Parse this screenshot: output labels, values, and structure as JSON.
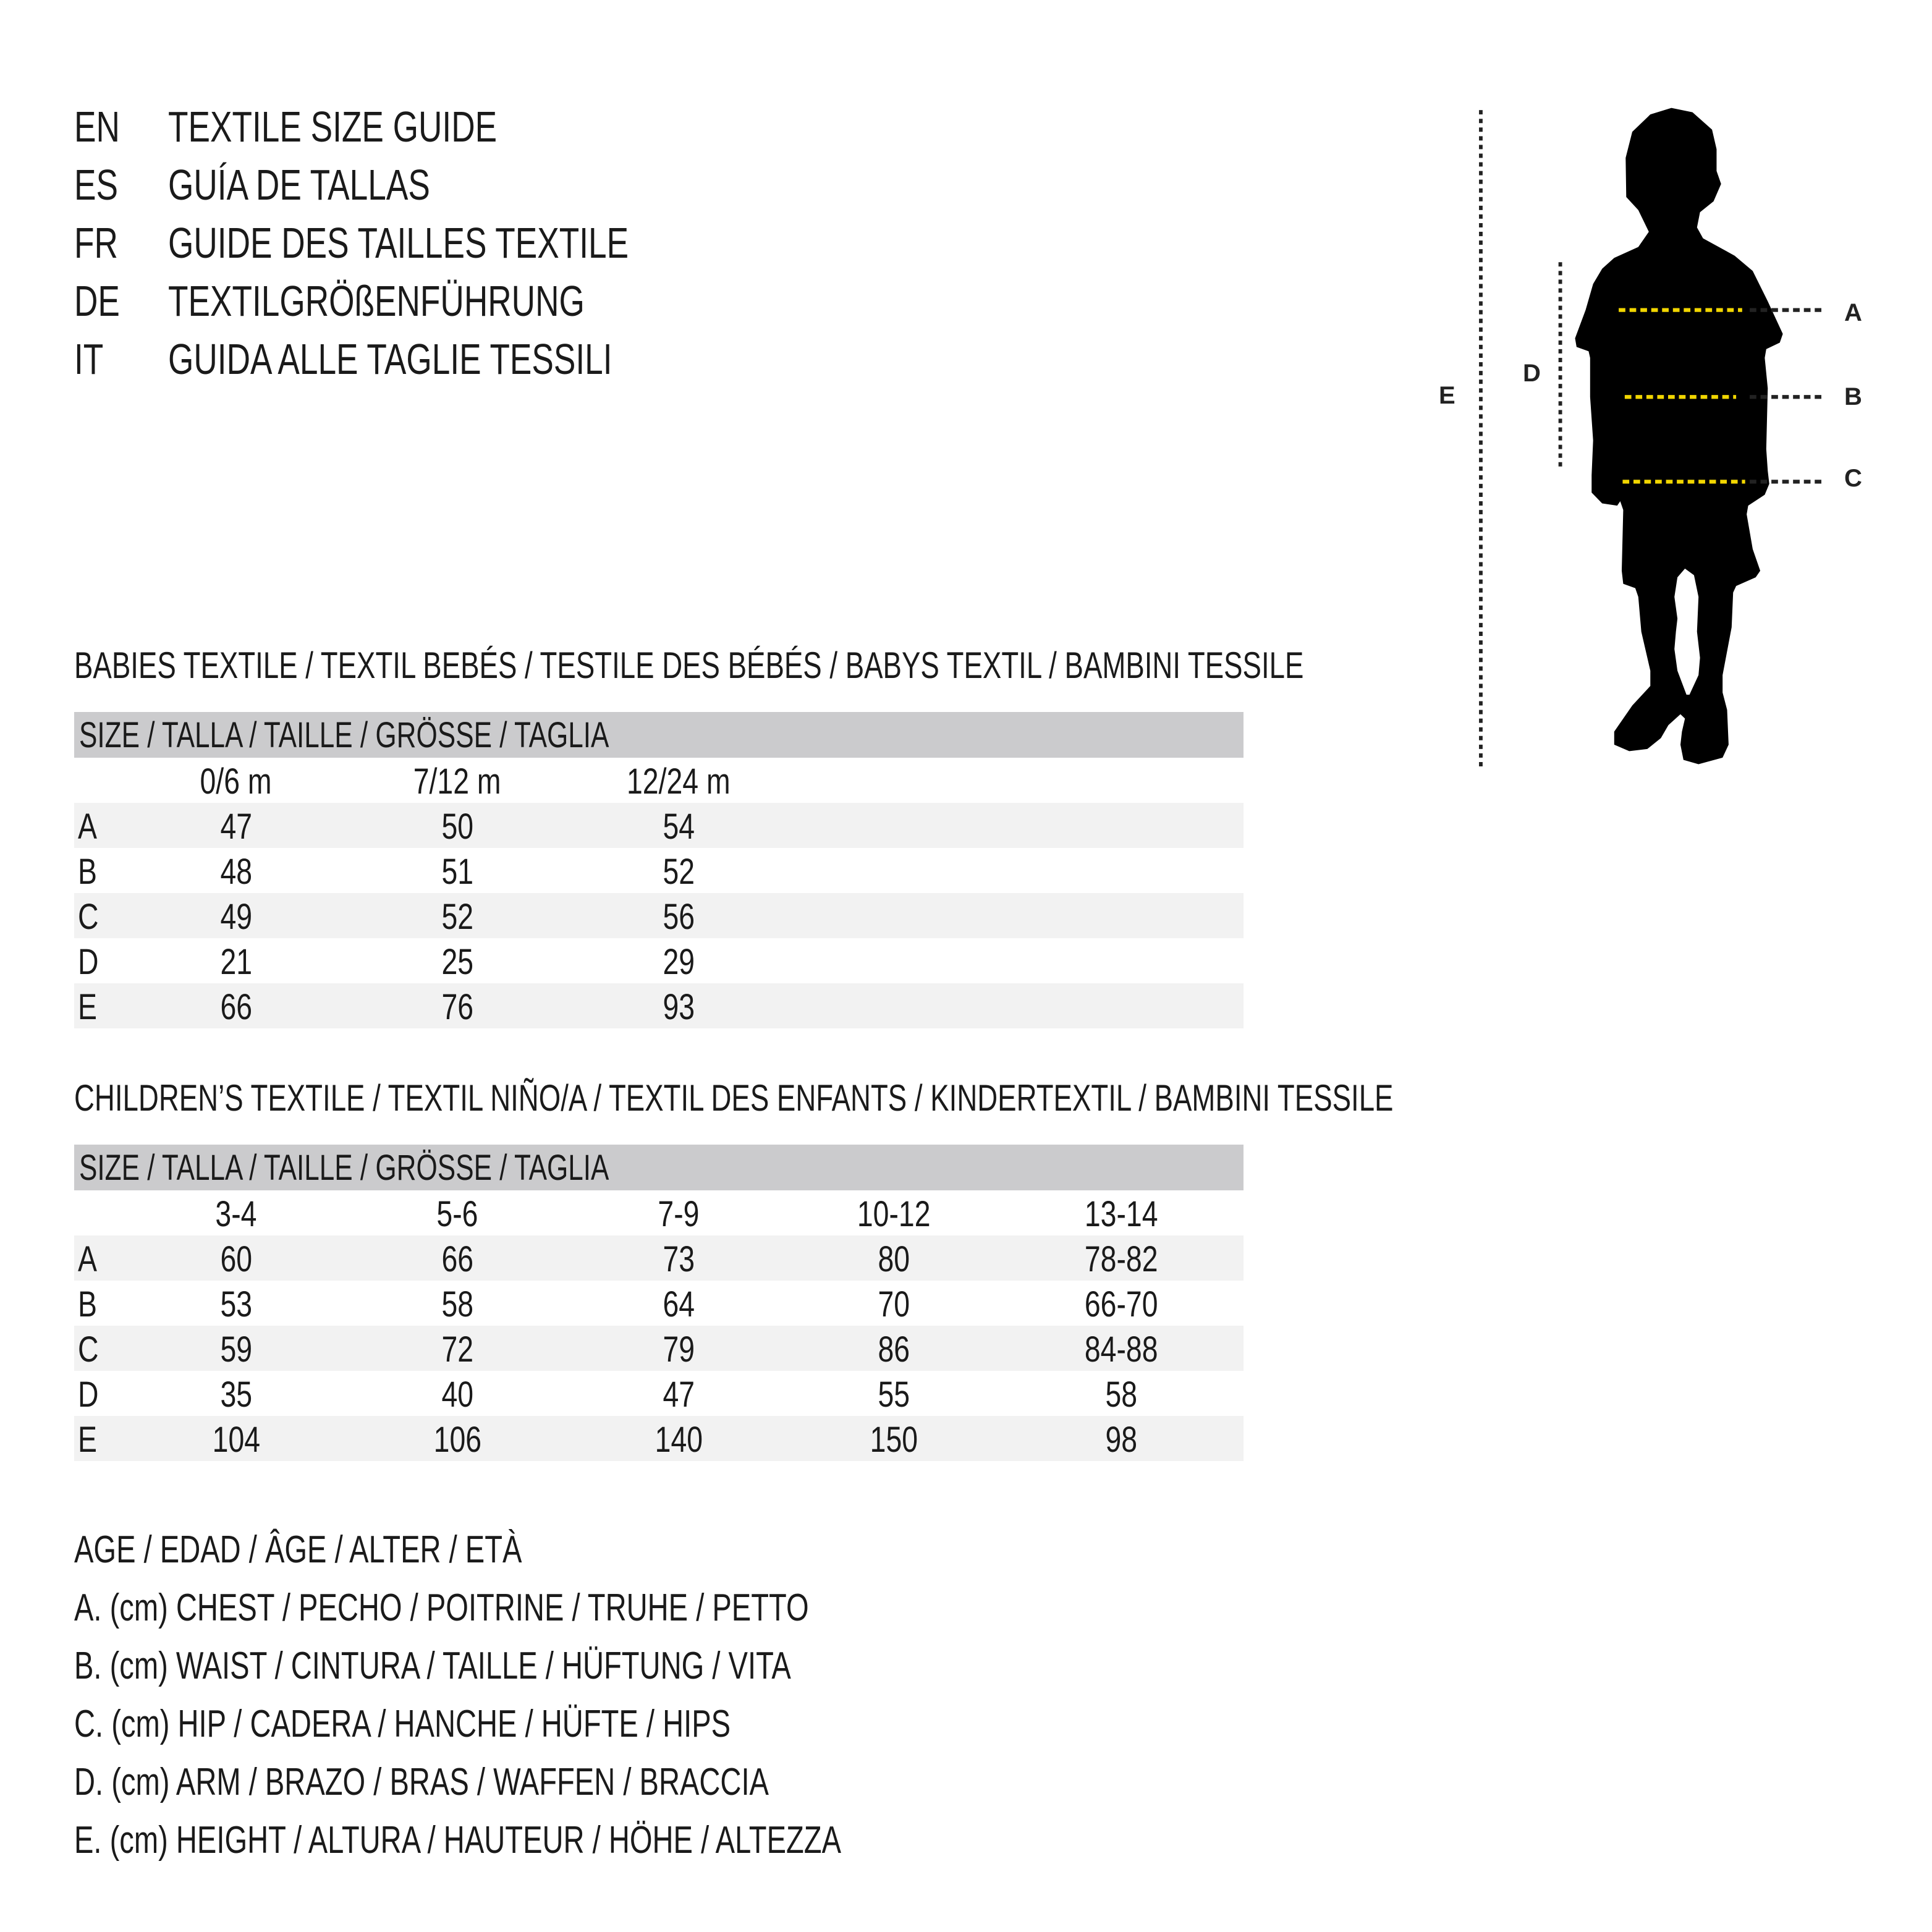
{
  "header": {
    "lines": [
      {
        "code": "EN",
        "title": "TEXTILE SIZE GUIDE"
      },
      {
        "code": "ES",
        "title": "GUÍA DE TALLAS"
      },
      {
        "code": "FR",
        "title": "GUIDE DES TAILLES TEXTILE"
      },
      {
        "code": "DE",
        "title": "TEXTILGRÖßENFÜHRUNG"
      },
      {
        "code": "IT",
        "title": "GUIDA ALLE TAGLIE TESSILI"
      }
    ]
  },
  "figure": {
    "labels": {
      "A": "A",
      "B": "B",
      "C": "C",
      "D": "D",
      "E": "E"
    },
    "colors": {
      "measure_line": "#f2d600",
      "silhouette": "#000000"
    }
  },
  "babies": {
    "title": "BABIES TEXTILE / TEXTIL BEBÉS / TESTILE DES BÉBÉS / BABYS TEXTIL / BAMBINI TESSILE",
    "size_header": "SIZE / TALLA / TAILLE / GRÖSSE / TAGLIA",
    "columns": [
      "0/6 m",
      "7/12 m",
      "12/24 m"
    ],
    "rows": [
      {
        "label": "A",
        "values": [
          "47",
          "50",
          "54"
        ]
      },
      {
        "label": "B",
        "values": [
          "48",
          "51",
          "52"
        ]
      },
      {
        "label": "C",
        "values": [
          "49",
          "52",
          "56"
        ]
      },
      {
        "label": "D",
        "values": [
          "21",
          "25",
          "29"
        ]
      },
      {
        "label": "E",
        "values": [
          "66",
          "76",
          "93"
        ]
      }
    ]
  },
  "children": {
    "title": "CHILDREN’S TEXTILE / TEXTIL NIÑO/A / TEXTIL DES ENFANTS / KINDERTEXTIL / BAMBINI TESSILE",
    "size_header": "SIZE / TALLA / TAILLE / GRÖSSE / TAGLIA",
    "columns": [
      "3-4",
      "5-6",
      "7-9",
      "10-12",
      "13-14"
    ],
    "rows": [
      {
        "label": "A",
        "values": [
          "60",
          "66",
          "73",
          "80",
          "78-82"
        ]
      },
      {
        "label": "B",
        "values": [
          "53",
          "58",
          "64",
          "70",
          "66-70"
        ]
      },
      {
        "label": "C",
        "values": [
          "59",
          "72",
          "79",
          "86",
          "84-88"
        ]
      },
      {
        "label": "D",
        "values": [
          "35",
          "40",
          "47",
          "55",
          "58"
        ]
      },
      {
        "label": "E",
        "values": [
          "104",
          "106",
          "140",
          "150",
          "98"
        ]
      }
    ]
  },
  "legend": [
    "AGE / EDAD / ÂGE / ALTER / ETÀ",
    "A. (cm) CHEST / PECHO / POITRINE / TRUHE / PETTO",
    "B. (cm) WAIST / CINTURA / TAILLE / HÜFTUNG / VITA",
    "C. (cm) HIP / CADERA / HANCHE / HÜFTE / HIPS",
    "D. (cm) ARM / BRAZO / BRAS / WAFFEN / BRACCIA",
    "E. (cm) HEIGHT / ALTURA / HAUTEUR / HÖHE / ALTEZZA"
  ]
}
